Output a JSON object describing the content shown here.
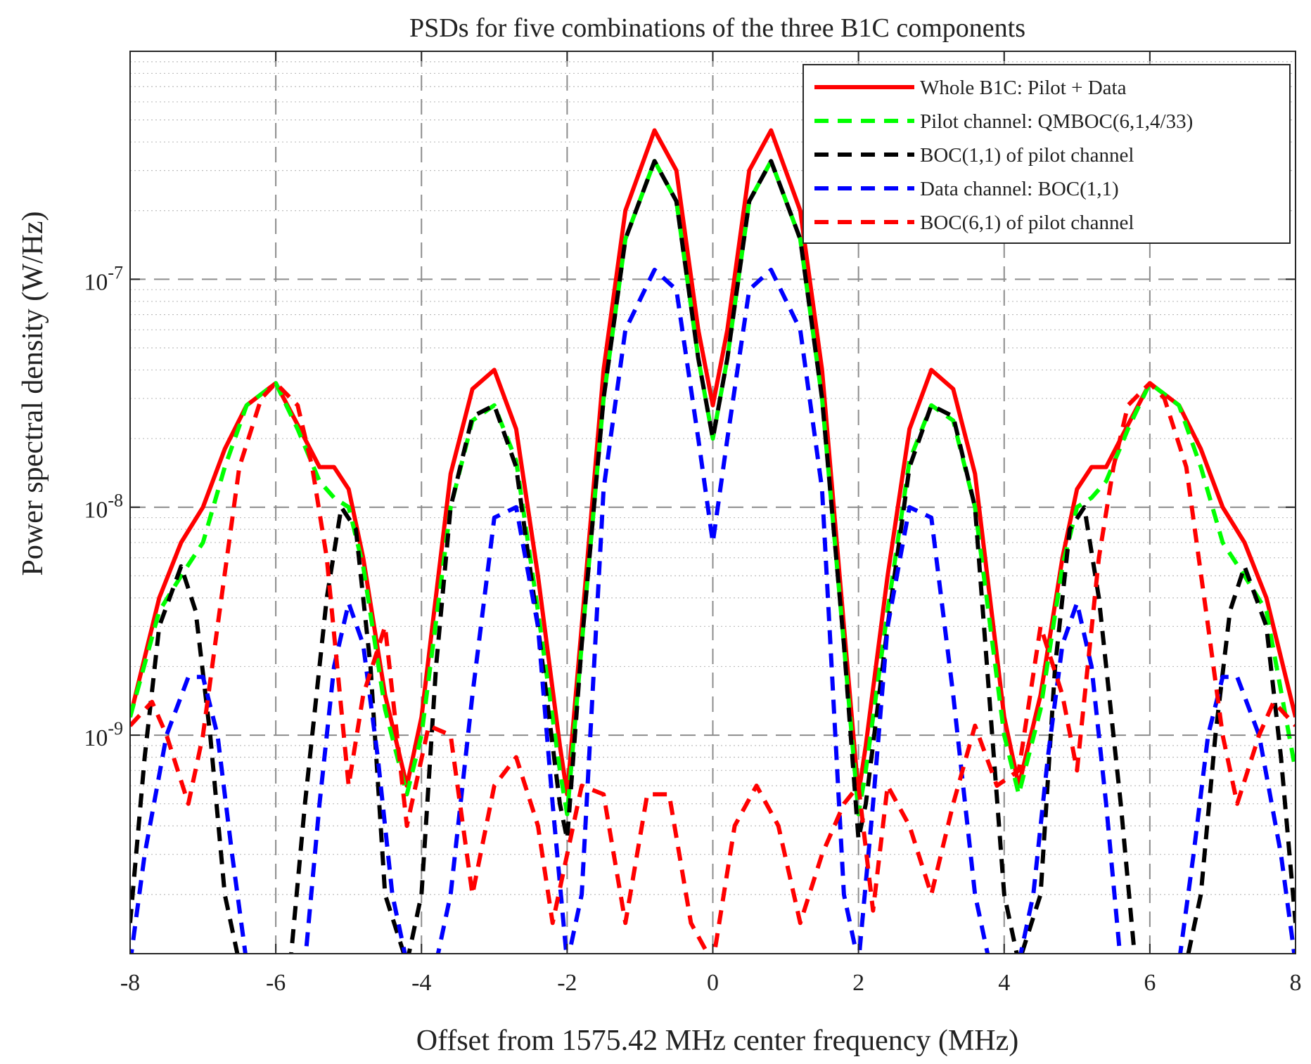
{
  "chart_data": {
    "type": "line",
    "title": "PSDs for five combinations of the three B1C components",
    "xlabel": "Offset from 1575.42 MHz center frequency (MHz)",
    "ylabel": "Power spectral density (W/Hz)",
    "xlim": [
      -8,
      8
    ],
    "ylim": [
      1.1e-10,
      1e-06
    ],
    "yscale": "log",
    "grid": true,
    "legend_position": "top-right",
    "x_ticks": [
      {
        "value": -8,
        "label": "-8"
      },
      {
        "value": -6,
        "label": "-6"
      },
      {
        "value": -4,
        "label": "-4"
      },
      {
        "value": -2,
        "label": "-2"
      },
      {
        "value": 0,
        "label": "0"
      },
      {
        "value": 2,
        "label": "2"
      },
      {
        "value": 4,
        "label": "4"
      },
      {
        "value": 6,
        "label": "6"
      },
      {
        "value": 8,
        "label": "8"
      }
    ],
    "y_ticks": [
      {
        "value": 1e-09,
        "base": "10",
        "exp": "-9"
      },
      {
        "value": 1e-08,
        "base": "10",
        "exp": "-8"
      },
      {
        "value": 1e-07,
        "base": "10",
        "exp": "-7"
      }
    ],
    "series": [
      {
        "name": "Whole B1C: Pilot + Data",
        "color": "#ff0000",
        "dash": "solid",
        "x": [
          -8,
          -7.6,
          -7.3,
          -7.0,
          -6.7,
          -6.4,
          -6.0,
          -5.7,
          -5.4,
          -5.2,
          -5.0,
          -4.8,
          -4.5,
          -4.2,
          -4.0,
          -3.6,
          -3.3,
          -3.0,
          -2.7,
          -2.4,
          -2.1,
          -2.0,
          -1.8,
          -1.5,
          -1.2,
          -0.8,
          -0.5,
          -0.2,
          0.0,
          0.2,
          0.5,
          0.8,
          1.2,
          1.5,
          1.8,
          2.0,
          2.1,
          2.4,
          2.7,
          3.0,
          3.3,
          3.6,
          4.0,
          4.2,
          4.5,
          4.8,
          5.0,
          5.2,
          5.4,
          5.7,
          6.0,
          6.4,
          6.7,
          7.0,
          7.3,
          7.6,
          8.0
        ],
        "y": [
          1.2e-09,
          4e-09,
          7e-09,
          1e-08,
          1.8e-08,
          2.8e-08,
          3.5e-08,
          2.3e-08,
          1.5e-08,
          1.5e-08,
          1.2e-08,
          6e-09,
          1.5e-09,
          6e-10,
          1.2e-09,
          1.4e-08,
          3.3e-08,
          4e-08,
          2.2e-08,
          5e-09,
          9e-10,
          5.5e-10,
          3e-09,
          4e-08,
          2e-07,
          4.5e-07,
          3e-07,
          6e-08,
          2.8e-08,
          6e-08,
          3e-07,
          4.5e-07,
          2e-07,
          4e-08,
          3e-09,
          5.5e-10,
          9e-10,
          5e-09,
          2.2e-08,
          4e-08,
          3.3e-08,
          1.4e-08,
          1.2e-09,
          6e-10,
          1.5e-09,
          6e-09,
          1.2e-08,
          1.5e-08,
          1.5e-08,
          2.3e-08,
          3.5e-08,
          2.8e-08,
          1.8e-08,
          1e-08,
          7e-09,
          4e-09,
          1.2e-09
        ]
      },
      {
        "name": "Pilot channel: QMBOC(6,1,4/33)",
        "color": "#00ff00",
        "dash": "dashed",
        "x": [
          -8,
          -7.6,
          -7.3,
          -7.0,
          -6.7,
          -6.4,
          -6.0,
          -5.7,
          -5.4,
          -5.2,
          -5.0,
          -4.8,
          -4.5,
          -4.2,
          -4.0,
          -3.6,
          -3.3,
          -3.0,
          -2.7,
          -2.4,
          -2.1,
          -2.0,
          -1.8,
          -1.5,
          -1.2,
          -0.8,
          -0.5,
          -0.2,
          0.0,
          0.2,
          0.5,
          0.8,
          1.2,
          1.5,
          1.8,
          2.0,
          2.1,
          2.4,
          2.7,
          3.0,
          3.3,
          3.6,
          4.0,
          4.2,
          4.5,
          4.8,
          5.0,
          5.2,
          5.4,
          5.7,
          6.0,
          6.4,
          6.7,
          7.0,
          7.3,
          7.6,
          8.0
        ],
        "y": [
          1.2e-09,
          3.5e-09,
          5e-09,
          7e-09,
          1.5e-08,
          2.8e-08,
          3.5e-08,
          2.2e-08,
          1.3e-08,
          1.1e-08,
          1e-08,
          5.5e-09,
          1.3e-09,
          5.5e-10,
          1e-09,
          1e-08,
          2.4e-08,
          2.8e-08,
          1.6e-08,
          3.5e-09,
          7e-10,
          4.5e-10,
          2.5e-09,
          3e-08,
          1.5e-07,
          3.3e-07,
          2.2e-07,
          4.5e-08,
          2e-08,
          4.5e-08,
          2.2e-07,
          3.3e-07,
          1.5e-07,
          3e-08,
          2.5e-09,
          4.5e-10,
          7e-10,
          3.5e-09,
          1.6e-08,
          2.8e-08,
          2.4e-08,
          1e-08,
          1e-09,
          5.5e-10,
          1.3e-09,
          5.5e-09,
          1e-08,
          1.1e-08,
          1.3e-08,
          2.2e-08,
          3.5e-08,
          2.8e-08,
          1.5e-08,
          7e-09,
          5e-09,
          3.5e-09,
          7e-10
        ]
      },
      {
        "name": "BOC(1,1) of pilot channel",
        "color": "#000000",
        "dash": "dashed",
        "x": [
          -8,
          -7.8,
          -7.6,
          -7.3,
          -7.1,
          -6.9,
          -6.7,
          -6.5,
          -6.2,
          -6.0,
          -5.8,
          -5.6,
          -5.3,
          -5.1,
          -4.9,
          -4.7,
          -4.5,
          -4.2,
          -4.0,
          -3.8,
          -3.6,
          -3.3,
          -3.0,
          -2.7,
          -2.4,
          -2.1,
          -2.0,
          -1.8,
          -1.5,
          -1.2,
          -0.8,
          -0.5,
          -0.2,
          0.0,
          0.2,
          0.5,
          0.8,
          1.2,
          1.5,
          1.8,
          2.0,
          2.1,
          2.4,
          2.7,
          3.0,
          3.3,
          3.6,
          4.0,
          4.2,
          4.5,
          4.7,
          4.9,
          5.1,
          5.3,
          5.6,
          5.8,
          6.0,
          6.2,
          6.5,
          6.7,
          6.9,
          7.1,
          7.3,
          7.6,
          7.8,
          8.0
        ],
        "y": [
          1.5e-10,
          8e-10,
          3e-09,
          5.5e-09,
          3.5e-09,
          1e-09,
          2e-10,
          1e-10,
          1e-10,
          1e-10,
          1e-10,
          5e-10,
          4e-09,
          1e-08,
          8e-09,
          2e-09,
          2e-10,
          1e-10,
          2e-10,
          2e-09,
          1e-08,
          2.5e-08,
          2.8e-08,
          1.5e-08,
          3e-09,
          5e-10,
          3.5e-10,
          2.5e-09,
          3e-08,
          1.5e-07,
          3.3e-07,
          2.2e-07,
          4.5e-08,
          2e-08,
          4.5e-08,
          2.2e-07,
          3.3e-07,
          1.5e-07,
          3e-08,
          2.5e-09,
          3.5e-10,
          5e-10,
          3e-09,
          1.5e-08,
          2.8e-08,
          2.5e-08,
          1e-08,
          2e-10,
          1e-10,
          2e-10,
          2e-09,
          8e-09,
          1e-08,
          4e-09,
          5e-10,
          1e-10,
          1e-10,
          1e-10,
          1e-10,
          2e-10,
          1e-09,
          3.5e-09,
          5.5e-09,
          3e-09,
          8e-10,
          1.5e-10
        ]
      },
      {
        "name": "Data channel: BOC(1,1)",
        "color": "#0000ff",
        "dash": "dashed",
        "x": [
          -8,
          -7.8,
          -7.5,
          -7.2,
          -7.0,
          -6.8,
          -6.6,
          -6.4,
          -6.2,
          -6.0,
          -5.8,
          -5.6,
          -5.4,
          -5.2,
          -5.0,
          -4.8,
          -4.6,
          -4.4,
          -4.2,
          -4.0,
          -3.8,
          -3.6,
          -3.3,
          -3.0,
          -2.7,
          -2.4,
          -2.2,
          -2.0,
          -1.8,
          -1.5,
          -1.2,
          -0.8,
          -0.5,
          -0.2,
          0.0,
          0.2,
          0.5,
          0.8,
          1.2,
          1.5,
          1.8,
          2.0,
          2.2,
          2.4,
          2.7,
          3.0,
          3.3,
          3.6,
          3.8,
          4.0,
          4.2,
          4.4,
          4.6,
          4.8,
          5.0,
          5.2,
          5.4,
          5.6,
          5.8,
          6.0,
          6.2,
          6.4,
          6.6,
          6.8,
          7.0,
          7.2,
          7.5,
          7.8,
          8.0
        ],
        "y": [
          1e-10,
          3e-10,
          1e-09,
          1.8e-09,
          1.8e-09,
          1e-09,
          3e-10,
          1e-10,
          1e-10,
          1e-10,
          1e-10,
          1e-10,
          5e-10,
          2e-09,
          3.8e-09,
          2.5e-09,
          8e-10,
          2e-10,
          1e-10,
          1e-10,
          1e-10,
          2e-10,
          1.5e-09,
          9e-09,
          1e-08,
          3e-09,
          5e-10,
          1e-10,
          2e-10,
          1.2e-08,
          6e-08,
          1.1e-07,
          9e-08,
          2e-08,
          7e-09,
          2e-08,
          9e-08,
          1.1e-07,
          6e-08,
          1.2e-08,
          2e-10,
          1e-10,
          5e-10,
          3e-09,
          1e-08,
          9e-09,
          1.5e-09,
          2e-10,
          1e-10,
          1e-10,
          1e-10,
          2e-10,
          8e-10,
          2.5e-09,
          3.8e-09,
          2e-09,
          5e-10,
          1e-10,
          1e-10,
          1e-10,
          1e-10,
          1e-10,
          3e-10,
          1e-09,
          1.8e-09,
          1.8e-09,
          1e-09,
          3e-10,
          1e-10
        ]
      },
      {
        "name": "BOC(6,1) of pilot channel",
        "color": "#ff0000",
        "dash": "dashed",
        "x": [
          -8,
          -7.7,
          -7.5,
          -7.2,
          -7.0,
          -6.8,
          -6.5,
          -6.2,
          -6.0,
          -5.7,
          -5.5,
          -5.3,
          -5.0,
          -4.8,
          -4.5,
          -4.2,
          -3.9,
          -3.6,
          -3.3,
          -3.0,
          -2.7,
          -2.4,
          -2.2,
          -2.0,
          -1.8,
          -1.5,
          -1.2,
          -0.9,
          -0.6,
          -0.3,
          0.0,
          0.3,
          0.6,
          0.9,
          1.2,
          1.5,
          1.8,
          2.0,
          2.2,
          2.4,
          2.7,
          3.0,
          3.3,
          3.6,
          3.9,
          4.2,
          4.5,
          4.8,
          5.0,
          5.3,
          5.5,
          5.7,
          6.0,
          6.2,
          6.5,
          6.8,
          7.0,
          7.2,
          7.5,
          7.7,
          8.0
        ],
        "y": [
          1.1e-09,
          1.4e-09,
          1e-09,
          5e-10,
          1e-09,
          3e-09,
          1.5e-08,
          3e-08,
          3.5e-08,
          2.8e-08,
          1.5e-08,
          6e-09,
          6e-10,
          1.5e-09,
          3e-09,
          4e-10,
          1.1e-09,
          1e-09,
          2e-10,
          6e-10,
          8e-10,
          4e-10,
          1.5e-10,
          3e-10,
          6e-10,
          5.5e-10,
          1.5e-10,
          5.5e-10,
          5.5e-10,
          1.5e-10,
          1e-10,
          4e-10,
          6e-10,
          4e-10,
          1.5e-10,
          3e-10,
          5e-10,
          6e-10,
          1.7e-10,
          6e-10,
          4e-10,
          2e-10,
          5e-10,
          1.1e-09,
          6e-10,
          7e-10,
          3e-09,
          1.5e-09,
          7e-10,
          6e-09,
          1.5e-08,
          2.8e-08,
          3.5e-08,
          3e-08,
          1.5e-08,
          3e-09,
          1e-09,
          5e-10,
          1e-09,
          1.4e-09,
          1.1e-09
        ]
      }
    ]
  }
}
